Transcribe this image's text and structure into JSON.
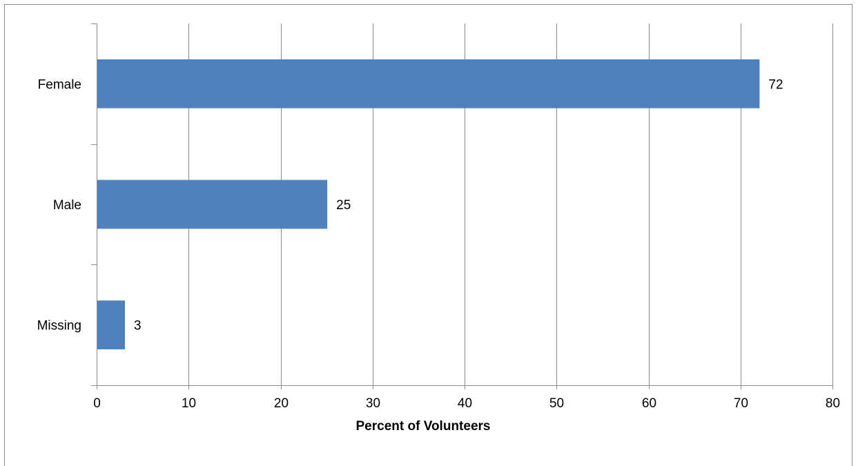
{
  "chart_data": {
    "type": "bar",
    "orientation": "horizontal",
    "categories": [
      "Female",
      "Male",
      "Missing"
    ],
    "values": [
      72,
      25,
      3
    ],
    "data_labels": [
      "72",
      "25",
      "3"
    ],
    "title": "",
    "xlabel": "Percent of Volunteers",
    "ylabel": "",
    "xlim": [
      0,
      80
    ],
    "x_ticks": [
      0,
      10,
      20,
      30,
      40,
      50,
      60,
      70,
      80
    ],
    "x_tick_labels": [
      "0",
      "10",
      "20",
      "30",
      "40",
      "50",
      "60",
      "70",
      "80"
    ],
    "grid": "vertical",
    "legend": "none",
    "bar_color": "#4f81bd"
  }
}
